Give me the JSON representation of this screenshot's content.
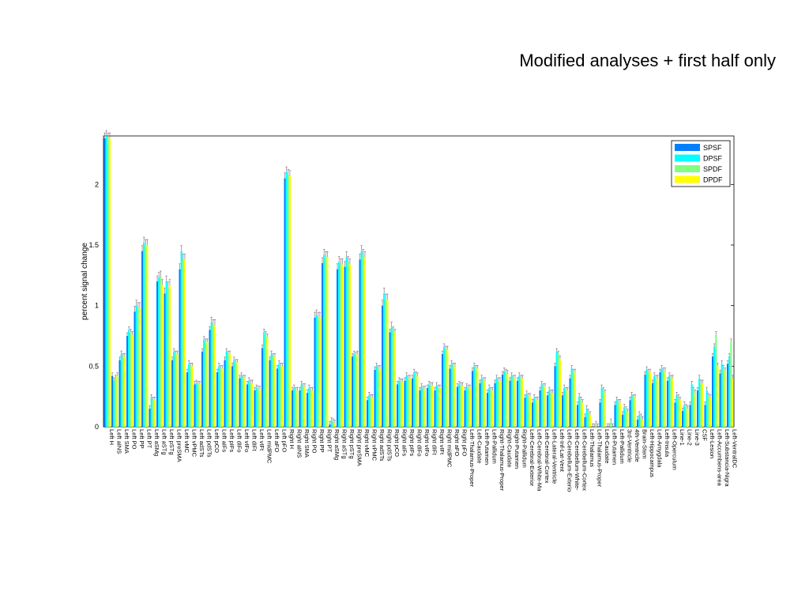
{
  "slide": {
    "title": "Modified analyses + first half only"
  },
  "colors": {
    "SPSF": "#0080ff",
    "DPSF": "#00ffff",
    "SPDF": "#80ff80",
    "DPDF": "#ffff00",
    "errorbar": "#8a7a8a",
    "axis": "#000000"
  },
  "chart_data": {
    "type": "bar",
    "title": "",
    "xlabel": "",
    "ylabel": "percent signal change",
    "ylim": [
      0,
      2.4
    ],
    "yticks": [
      0,
      0.5,
      1,
      1.5,
      2
    ],
    "grid": false,
    "legend_position": "top-right",
    "series_names": [
      "SPSF",
      "DPSF",
      "SPDF",
      "DPDF"
    ],
    "categories": [
      "Left H",
      "Left aINS",
      "Left SMA",
      "Left PO",
      "Left PP",
      "Left PT",
      "Left aSMg",
      "Left aSTg",
      "Left pSTg",
      "Left preSMA",
      "Left vMC",
      "Left vPMC",
      "Left adSTs",
      "Left pdSTs",
      "Left pCO",
      "Left aIFs",
      "Left pIFs",
      "Left dIFo",
      "Left vIFo",
      "Left dIFt",
      "Left vIFt",
      "Left midPMC",
      "Left aFO",
      "Left pFO",
      "Right H",
      "Right aINS",
      "Right SMA",
      "Right PO",
      "Right PP",
      "Right PT",
      "Right aSMg",
      "Right aSTg",
      "Right pSTg",
      "Right preSMA",
      "Right vMC",
      "Right vPMC",
      "Right adSTs",
      "Right pdSTs",
      "Right pCO",
      "Right aIFs",
      "Right pIFs",
      "Right dIFo",
      "Right vIFo",
      "Right dIFt",
      "Right vIFt",
      "Right midPMC",
      "Right aFO",
      "Right pFO",
      "Left-Thalamus-Proper",
      "Left-Caudate",
      "Left-Putamen",
      "Left-Pallidum",
      "Right-Thalamus-Proper",
      "Right-Caudate",
      "Right-Putamen",
      "Right-Pallidum",
      "Left-Cerebral-Exterior",
      "Left-Cerebral-White-Ma",
      "Left-Cerebral-Cortex",
      "Left-Lateral-Ventricle",
      "Left-Inf-Lat-Vent",
      "Left-Cerebellum-Exterio",
      "Left-Cerebellum-White-",
      "Left-Cerebellum-Cortex",
      "Left-Thalamus",
      "Left-Thalamus-Proper",
      "Left-Caudate",
      "Left-Putamen",
      "Left-Pallidum",
      "3rd-Ventricle",
      "4th-Ventricle",
      "Brain-Stem",
      "Left-Hippocampus",
      "Left-Amygdala",
      "Left-Insula",
      "Left-Operculum",
      "Line-1",
      "Line-2",
      "Line-3",
      "CSF",
      "Left-Lesion",
      "Left-Accumbens-area",
      "Left-Substancia-Nigra",
      "Left-VentralDC"
    ],
    "series": [
      {
        "name": "SPSF",
        "values": [
          2.38,
          0.42,
          0.55,
          0.75,
          0.95,
          1.45,
          0.15,
          1.2,
          1.1,
          0.55,
          1.3,
          0.45,
          0.35,
          0.62,
          0.8,
          0.45,
          0.55,
          0.5,
          0.4,
          0.35,
          0.3,
          0.65,
          0.55,
          0.48,
          2.05,
          0.3,
          0.3,
          0.28,
          0.9,
          1.35,
          0.02,
          1.3,
          1.32,
          0.58,
          1.38,
          0.22,
          0.47,
          1.0,
          0.78,
          0.35,
          0.38,
          0.4,
          0.3,
          0.32,
          0.3,
          0.6,
          0.48,
          0.33,
          0.3,
          0.46,
          0.36,
          0.28,
          0.36,
          0.43,
          0.38,
          0.38,
          0.24,
          0.2,
          0.3,
          0.26,
          0.5,
          0.26,
          0.4,
          0.18,
          0.08,
          0.0,
          0.2,
          0.0,
          0.18,
          0.1,
          0.22,
          0.06,
          0.43,
          0.36,
          0.45,
          0.38,
          0.2,
          0.13,
          0.18,
          0.3,
          0.18,
          0.58,
          0.44,
          0.52
        ]
      },
      {
        "name": "DPSF",
        "values": [
          2.4,
          0.38,
          0.6,
          0.8,
          1.0,
          1.52,
          0.24,
          1.23,
          1.2,
          0.62,
          1.45,
          0.52,
          0.36,
          0.72,
          0.86,
          0.5,
          0.62,
          0.55,
          0.42,
          0.38,
          0.32,
          0.78,
          0.6,
          0.52,
          2.1,
          0.32,
          0.35,
          0.32,
          0.92,
          1.42,
          0.05,
          1.36,
          1.4,
          0.6,
          1.45,
          0.26,
          0.5,
          1.1,
          0.82,
          0.38,
          0.42,
          0.45,
          0.33,
          0.35,
          0.34,
          0.66,
          0.52,
          0.35,
          0.33,
          0.5,
          0.4,
          0.32,
          0.4,
          0.46,
          0.42,
          0.42,
          0.27,
          0.24,
          0.35,
          0.3,
          0.62,
          0.32,
          0.48,
          0.25,
          0.15,
          0.0,
          0.32,
          0.0,
          0.22,
          0.16,
          0.26,
          0.1,
          0.47,
          0.42,
          0.48,
          0.42,
          0.26,
          0.18,
          0.35,
          0.4,
          0.3,
          0.66,
          0.52,
          0.58
        ]
      },
      {
        "name": "SPDF",
        "values": [
          2.38,
          0.4,
          0.58,
          0.78,
          0.98,
          1.5,
          0.22,
          1.24,
          1.15,
          0.6,
          1.38,
          0.5,
          0.35,
          0.7,
          0.84,
          0.48,
          0.6,
          0.53,
          0.4,
          0.36,
          0.31,
          0.76,
          0.58,
          0.5,
          2.08,
          0.3,
          0.33,
          0.3,
          0.9,
          1.4,
          0.04,
          1.34,
          1.36,
          0.59,
          1.42,
          0.24,
          0.48,
          1.05,
          0.8,
          0.37,
          0.4,
          0.43,
          0.31,
          0.34,
          0.32,
          0.64,
          0.5,
          0.34,
          0.32,
          0.48,
          0.38,
          0.3,
          0.38,
          0.45,
          0.4,
          0.4,
          0.25,
          0.22,
          0.33,
          0.28,
          0.6,
          0.3,
          0.45,
          0.22,
          0.12,
          0.02,
          0.3,
          0.04,
          0.2,
          0.14,
          0.24,
          0.08,
          0.45,
          0.4,
          0.46,
          0.4,
          0.24,
          0.16,
          0.3,
          0.36,
          0.25,
          0.76,
          0.48,
          0.7
        ]
      },
      {
        "name": "DPDF",
        "values": [
          2.38,
          0.42,
          0.58,
          0.76,
          0.98,
          1.5,
          0.22,
          1.17,
          1.17,
          0.6,
          1.38,
          0.5,
          0.35,
          0.7,
          0.84,
          0.48,
          0.6,
          0.53,
          0.4,
          0.36,
          0.31,
          0.74,
          0.58,
          0.5,
          2.07,
          0.3,
          0.33,
          0.3,
          0.9,
          1.4,
          0.03,
          1.34,
          1.34,
          0.6,
          1.4,
          0.24,
          0.48,
          1.05,
          0.78,
          0.37,
          0.4,
          0.42,
          0.31,
          0.34,
          0.32,
          0.64,
          0.5,
          0.34,
          0.32,
          0.48,
          0.38,
          0.3,
          0.38,
          0.44,
          0.4,
          0.4,
          0.25,
          0.22,
          0.33,
          0.28,
          0.56,
          0.3,
          0.45,
          0.2,
          0.1,
          0.0,
          0.28,
          0.0,
          0.2,
          0.12,
          0.24,
          0.06,
          0.45,
          0.4,
          0.46,
          0.4,
          0.22,
          0.15,
          0.28,
          0.36,
          0.24,
          0.5,
          0.46,
          0.4
        ]
      }
    ]
  }
}
